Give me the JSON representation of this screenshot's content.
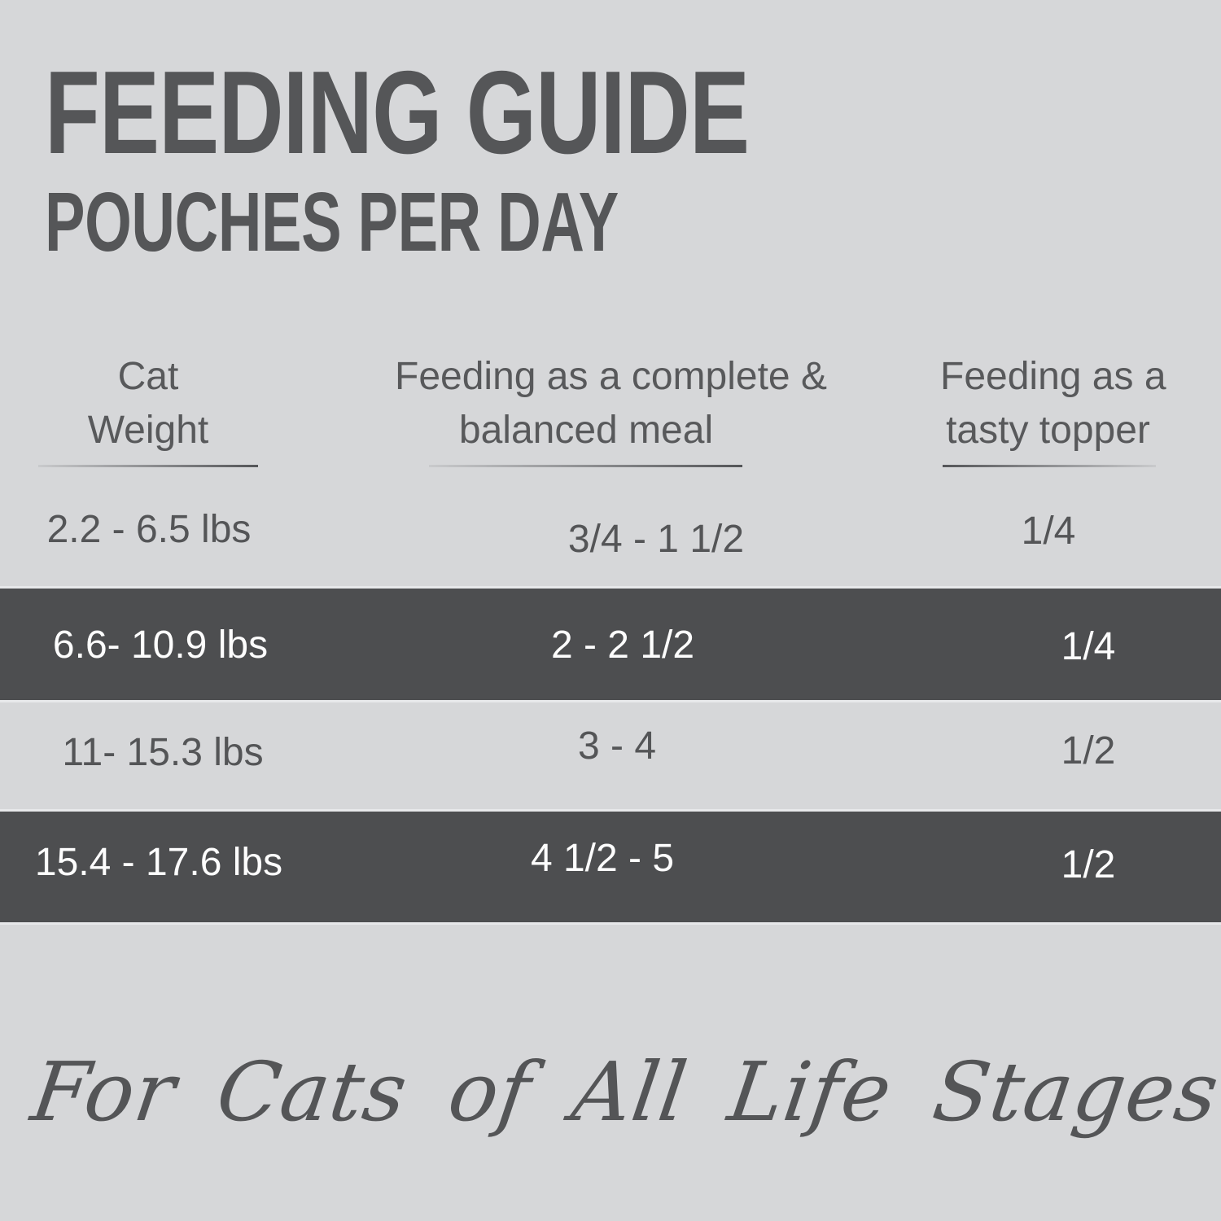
{
  "title": "FEEDING GUIDE",
  "subtitle": "POUCHES PER DAY",
  "table": {
    "columns": [
      {
        "line1": "Cat",
        "line2": "Weight"
      },
      {
        "line1": "Feeding as a complete &",
        "line2": "balanced meal"
      },
      {
        "line1": "Feeding as a",
        "line2": "tasty topper"
      }
    ],
    "rows": [
      {
        "weight": "2.2 - 6.5 lbs",
        "meal": "3/4 - 1 1/2",
        "topper": "1/4",
        "highlighted": false
      },
      {
        "weight": "6.6- 10.9 lbs",
        "meal": "2 - 2 1/2",
        "topper": "1/4",
        "highlighted": true
      },
      {
        "weight": "11- 15.3 lbs",
        "meal": "3 - 4",
        "topper": "1/2",
        "highlighted": false
      },
      {
        "weight": "15.4 - 17.6 lbs",
        "meal": "4 1/2 - 5",
        "topper": "1/2",
        "highlighted": true
      }
    ]
  },
  "footer": "For Cats of All Life Stages",
  "colors": {
    "background": "#d6d7d9",
    "text": "#555658",
    "highlight_row_background": "#4d4e50",
    "highlight_row_text": "#fdfdfd"
  }
}
